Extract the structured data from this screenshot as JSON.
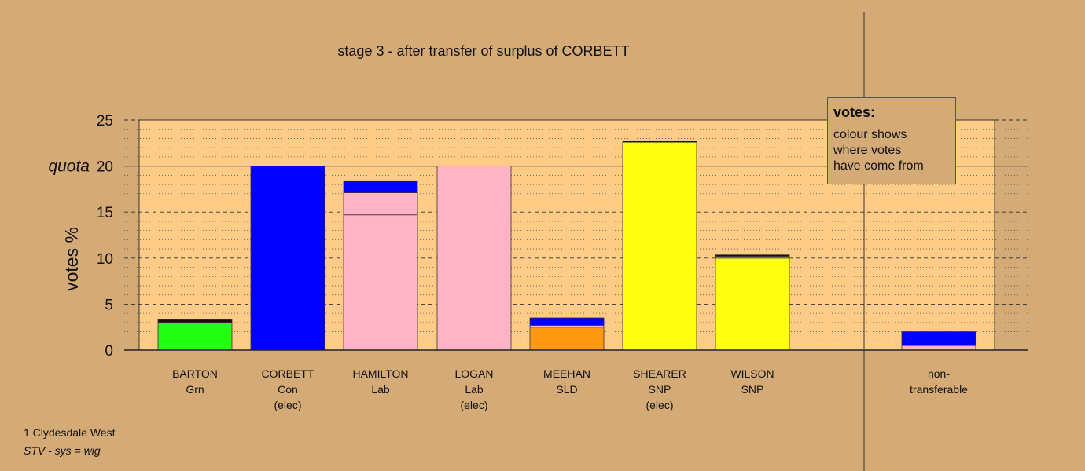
{
  "chart_data": {
    "type": "bar",
    "stacked": true,
    "title": "stage 3 - after transfer of surplus of CORBETT",
    "ylabel": "votes %",
    "ylim": [
      0,
      25
    ],
    "yticks": [
      0,
      5,
      10,
      15,
      20,
      25
    ],
    "quota": 20,
    "quota_label": "quota",
    "grid": "dotted minor, dashed major",
    "categories": [
      {
        "lines": [
          "BARTON",
          "Grn"
        ],
        "segments": [
          {
            "value": 3.0,
            "color": "#22ff11"
          },
          {
            "value": 0.3,
            "color": "#111111"
          }
        ]
      },
      {
        "lines": [
          "CORBETT",
          "Con",
          "(elec)"
        ],
        "segments": [
          {
            "value": 20.0,
            "color": "#0000ff"
          }
        ]
      },
      {
        "lines": [
          "HAMILTON",
          "Lab"
        ],
        "segments": [
          {
            "value": 14.7,
            "color": "#ffb3c6"
          },
          {
            "value": 2.4,
            "color": "#ffb3c6"
          },
          {
            "value": 1.3,
            "color": "#0000ff"
          }
        ]
      },
      {
        "lines": [
          "LOGAN",
          "Lab",
          "(elec)"
        ],
        "segments": [
          {
            "value": 20.0,
            "color": "#ffb3c6"
          }
        ]
      },
      {
        "lines": [
          "MEEHAN",
          "SLD"
        ],
        "segments": [
          {
            "value": 2.5,
            "color": "#ff9911"
          },
          {
            "value": 0.2,
            "color": "#ffb3c6"
          },
          {
            "value": 0.8,
            "color": "#0000ff"
          }
        ]
      },
      {
        "lines": [
          "SHEARER",
          "SNP",
          "(elec)"
        ],
        "segments": [
          {
            "value": 22.6,
            "color": "#ffff11"
          },
          {
            "value": 0.15,
            "color": "#111111"
          }
        ]
      },
      {
        "lines": [
          "WILSON",
          "SNP"
        ],
        "segments": [
          {
            "value": 10.0,
            "color": "#ffff11"
          },
          {
            "value": 0.2,
            "color": "#ffb3c6"
          },
          {
            "value": 0.15,
            "color": "#111111"
          }
        ]
      },
      {
        "lines": [
          "non-",
          "transferable"
        ],
        "segments": [
          {
            "value": 0.5,
            "color": "#ffb3c6"
          },
          {
            "value": 1.5,
            "color": "#0000ff"
          }
        ]
      }
    ]
  },
  "legend": {
    "title": "votes:",
    "lines": [
      "colour shows",
      "where votes",
      "have come from"
    ]
  },
  "footer": {
    "line1": "1 Clydesdale West",
    "line2": "STV - sys = wig"
  },
  "colors": {
    "background": "#d4aa76",
    "plot_background": "#ffcc88"
  }
}
